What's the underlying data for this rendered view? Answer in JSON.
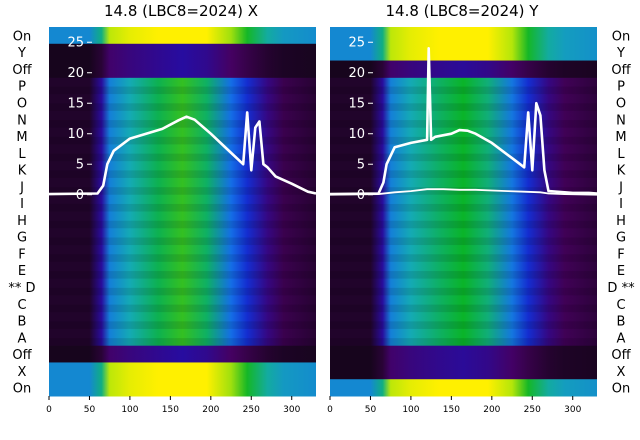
{
  "chart_data": [
    {
      "type": "heatmap",
      "title": "14.8 (LBC8=2024) X",
      "plane": "X",
      "x_ticks": [
        0,
        50,
        100,
        150,
        200,
        250,
        300
      ],
      "xlim": [
        0,
        330
      ],
      "y_ticks": [
        0,
        5,
        10,
        15,
        20,
        25
      ],
      "ylim": [
        -33,
        27.5
      ],
      "grid": false,
      "row_labels": [
        "On",
        "Y",
        "Off",
        "P",
        "O",
        "N",
        "M",
        "L",
        "K",
        "J",
        "I",
        "H",
        "G",
        "F",
        "E",
        "** D",
        "C",
        "B",
        "A",
        "Off",
        "X",
        "On"
      ],
      "selected_row": "D",
      "heatmap_columns": {
        "x": [
          0,
          50,
          65,
          75,
          100,
          135,
          165,
          195,
          225,
          245,
          270,
          290,
          330
        ],
        "level": [
          0.02,
          0.02,
          0.15,
          0.42,
          0.52,
          0.62,
          0.7,
          0.6,
          0.38,
          0.25,
          0.12,
          0.06,
          0.03
        ]
      },
      "series": [
        {
          "x": [
            0,
            60,
            67,
            72,
            80,
            100,
            120,
            140,
            160,
            170,
            180,
            200,
            220,
            240,
            245,
            250,
            255,
            260,
            265,
            270,
            280,
            300,
            320,
            330
          ],
          "y": [
            0.1,
            0.2,
            1.5,
            5,
            7.2,
            9.2,
            10.0,
            10.8,
            12.2,
            12.8,
            12.3,
            10.0,
            7.5,
            5.0,
            13.5,
            4.0,
            11.0,
            12.0,
            5.0,
            4.5,
            3.0,
            1.8,
            0.5,
            0.2
          ]
        }
      ]
    },
    {
      "type": "heatmap",
      "title": "14.8 (LBC8=2024) Y",
      "plane": "Y",
      "x_ticks": [
        0,
        50,
        100,
        150,
        200,
        250,
        300
      ],
      "xlim": [
        0,
        330
      ],
      "y_ticks": [
        0,
        5,
        10,
        15,
        20,
        25
      ],
      "ylim": [
        -33,
        27.5
      ],
      "grid": false,
      "row_labels": [
        "On",
        "Y",
        "Off",
        "P",
        "O",
        "N",
        "M",
        "L",
        "K",
        "J",
        "I",
        "H",
        "G",
        "F",
        "E",
        "D **",
        "C",
        "B",
        "A",
        "Off",
        "X",
        "On"
      ],
      "selected_row": "D",
      "heatmap_columns": {
        "x": [
          0,
          50,
          65,
          75,
          100,
          135,
          165,
          195,
          225,
          245,
          270,
          290,
          330
        ],
        "level": [
          0.02,
          0.02,
          0.15,
          0.42,
          0.52,
          0.6,
          0.66,
          0.58,
          0.4,
          0.25,
          0.12,
          0.07,
          0.04
        ]
      },
      "series": [
        {
          "x": [
            0,
            60,
            66,
            70,
            80,
            100,
            120,
            122,
            125,
            130,
            150,
            160,
            170,
            180,
            200,
            225,
            240,
            245,
            250,
            255,
            260,
            265,
            270,
            280,
            300,
            320,
            330
          ],
          "y": [
            0.1,
            0.2,
            2.0,
            5.0,
            7.8,
            8.5,
            9.0,
            24.0,
            9.0,
            9.5,
            10.0,
            10.6,
            10.5,
            10.0,
            8.5,
            6.0,
            4.5,
            13.5,
            4.0,
            15.0,
            13.0,
            4.0,
            0.6,
            0.5,
            0.3,
            0.3,
            0.2
          ]
        },
        {
          "x": [
            0,
            60,
            80,
            100,
            120,
            140,
            160,
            180,
            200,
            220,
            240,
            260,
            270,
            290,
            330
          ],
          "y": [
            0.0,
            0.1,
            0.4,
            0.6,
            0.9,
            0.9,
            0.8,
            0.8,
            0.7,
            0.6,
            0.5,
            0.4,
            0.2,
            0.1,
            0.0
          ]
        }
      ]
    }
  ]
}
